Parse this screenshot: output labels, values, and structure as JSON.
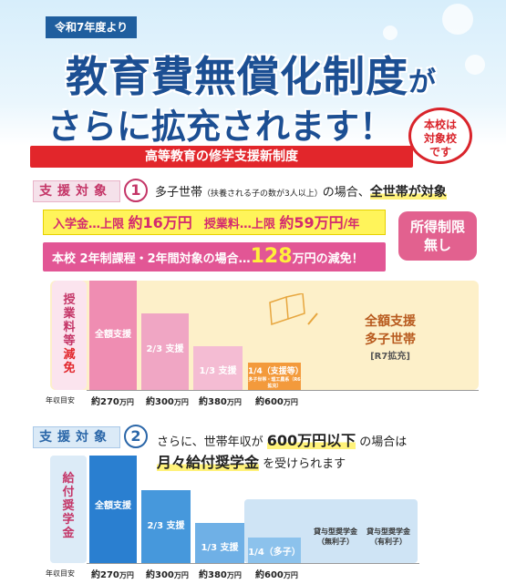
{
  "header": {
    "ribbon": "令和7年度より",
    "title_line1": "教育費無償化制度",
    "title_ga": "が",
    "title_line2": "さらに拡充されます！",
    "badge_lines": [
      "本校は",
      "対象校",
      "です"
    ],
    "subtitle": "高等教育の修学支援新制度"
  },
  "section1": {
    "tag": "支援対象",
    "num": "1",
    "text_a": "多子世帯",
    "text_small": "（扶養される子の数が3人以上）",
    "text_b": "の場合、",
    "text_highlight": "全世帯が対象",
    "yellow_a": "入学金…上限 ",
    "yellow_a_val": "約16万円",
    "yellow_b": "　授業料…上限 ",
    "yellow_b_val": "約59万円",
    "yellow_b_unit": "/年",
    "pink_a": "本校 2年制課程・2年間対象の場合…",
    "pink_val": "128",
    "pink_b": "万円の減免！",
    "income_badge": [
      "所得制限",
      "無し"
    ],
    "vlabel_top": [
      "授",
      "業",
      "料",
      "等"
    ],
    "vlabel_bottom": [
      "減",
      "免"
    ],
    "bars": [
      "全額支援",
      "2/3 支援",
      "1/3 支援",
      "1/4（支援等）"
    ],
    "bar4_note": "多子世帯・理工農系（R6拡充）",
    "right_note": [
      "全額支援",
      "多子世帯",
      "[R7拡充]"
    ],
    "axis_head": "年収目安",
    "axis": [
      "約270",
      "約300",
      "約380",
      "約600"
    ],
    "axis_unit": "万円"
  },
  "section2": {
    "tag": "支援対象",
    "num": "2",
    "line1_a": "さらに、世帯年収が ",
    "line1_b": "600万円以下",
    "line1_c": " の場合は",
    "line2_a": "月々給付奨学金",
    "line2_b": " を受けられます",
    "vlabel": [
      "給",
      "付",
      "奨",
      "学",
      "金"
    ],
    "bars": [
      "全額支援",
      "2/3 支援",
      "1/3 支援",
      "1/4（多子）"
    ],
    "loan1": [
      "貸与型奨学金",
      "（無利子）"
    ],
    "loan2": [
      "貸与型奨学金",
      "（有利子）"
    ],
    "axis_head": "年収目安",
    "axis": [
      "約270",
      "約300",
      "約380",
      "約600"
    ],
    "axis_unit": "万円"
  },
  "colors": {
    "accent_red": "#e2262b",
    "title_blue": "#1c4f93",
    "pink": "#e25695",
    "bar_blue": "#2e86d6"
  }
}
